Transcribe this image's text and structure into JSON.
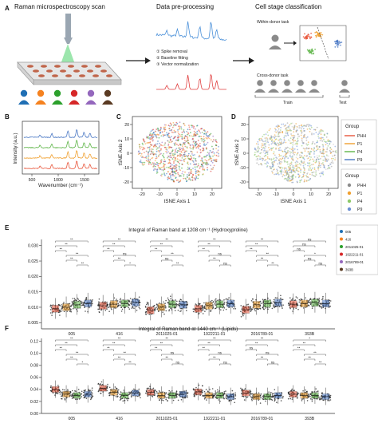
{
  "panel_a": {
    "letter": "A",
    "scan_title": "Raman microspectroscopy scan",
    "prep_title": "Data pre-processing",
    "steps": [
      "① Spike removal",
      "② Baseline fitting",
      "③ Vector normalization"
    ],
    "class_title": "Cell stage classification",
    "within_donor": "Within-donor task",
    "cross_donor": "Cross-donor task",
    "train_label": "Train",
    "test_label": "Test"
  },
  "panel_b": {
    "letter": "B",
    "ylabel": "Intensity (a.u.)",
    "xlabel": "Wavenumber (cm⁻¹)",
    "xticks": [
      "500",
      "1000",
      "1500"
    ]
  },
  "panel_c": {
    "letter": "C",
    "xlabel": "tSNE Axis 1",
    "ylabel": "tSNE Axis 2",
    "xticks": [
      "-20",
      "-10",
      "0",
      "10",
      "20"
    ],
    "yticks": [
      "20",
      "10",
      "0",
      "-10",
      "-20"
    ]
  },
  "panel_d": {
    "letter": "D",
    "xlabel": "tSNE Axis 1",
    "ylabel": "tSNE Axis 2",
    "xticks": [
      "-20",
      "-10",
      "0",
      "10",
      "20"
    ],
    "yticks": [
      "20",
      "10",
      "0",
      "-10",
      "-20"
    ]
  },
  "legend_group_lines": {
    "title": "Group",
    "items": [
      {
        "label": "PHH",
        "color": "#e8553a"
      },
      {
        "label": "P1",
        "color": "#f0a030"
      },
      {
        "label": "P4",
        "color": "#5fb548"
      },
      {
        "label": "P9",
        "color": "#4a78c4"
      }
    ]
  },
  "legend_group_dots": {
    "title": "Group",
    "items": [
      {
        "label": "PHH",
        "color": "#8c8c8c"
      },
      {
        "label": "P1",
        "color": "#f0a030"
      },
      {
        "label": "P4",
        "color": "#8dc96a"
      },
      {
        "label": "P9",
        "color": "#6b8fd4"
      }
    ]
  },
  "legend_donors": {
    "items": [
      {
        "label": "005",
        "color": "#1f6fb4"
      },
      {
        "label": "416",
        "color": "#f58220"
      },
      {
        "label": "2011025-01",
        "color": "#2ca02c"
      },
      {
        "label": "1922211-01",
        "color": "#d62728"
      },
      {
        "label": "2016789-01",
        "color": "#9467bd"
      },
      {
        "label": "393B",
        "color": "#5a3a22"
      }
    ]
  },
  "chart_data": [
    {
      "type": "box",
      "panel": "E",
      "title": "Integral of Raman band at 1208 cm⁻¹ (Hydroxyproline)",
      "categories": [
        "005",
        "416",
        "2011025-01",
        "1922211-01",
        "2016789-01",
        "393B"
      ],
      "yticks": [
        "0.005",
        "0.010",
        "0.015",
        "0.020",
        "0.025",
        "0.030"
      ],
      "ylim": [
        0.003,
        0.032
      ],
      "series_order": [
        "PHH",
        "P1",
        "P4",
        "P9"
      ],
      "medians": [
        [
          0.0095,
          0.01,
          0.0108,
          0.0112
        ],
        [
          0.0105,
          0.011,
          0.0112,
          0.0115
        ],
        [
          0.009,
          0.01,
          0.011,
          0.0108
        ],
        [
          0.0095,
          0.0105,
          0.011,
          0.0112
        ],
        [
          0.0092,
          0.0108,
          0.0112,
          0.0115
        ],
        [
          0.011,
          0.0112,
          0.0115,
          0.0112
        ]
      ],
      "sig": [
        [
          "**",
          "**",
          "**",
          "**",
          "**",
          "**",
          "**"
        ],
        [
          "**",
          "**",
          "**",
          "ns",
          "**",
          "*",
          "*"
        ],
        [
          "**",
          "**",
          "**",
          "**",
          "ns",
          "**",
          "ns"
        ],
        [
          "**",
          "**",
          "**",
          "ns",
          "**",
          "ns",
          "**"
        ],
        [
          "**",
          "**",
          "**",
          "**",
          "**",
          "**",
          "**"
        ],
        [
          "ns",
          "ns",
          "ns",
          "*",
          "ns",
          "ns",
          "ns"
        ]
      ]
    },
    {
      "type": "box",
      "panel": "F",
      "title": "Integral of Raman band at 1440 cm⁻¹ (Lipids)",
      "categories": [
        "005",
        "416",
        "2011025-01",
        "1922211-01",
        "2016789-01",
        "393B"
      ],
      "yticks": [
        "0.00",
        "0.02",
        "0.04",
        "0.06",
        "0.08",
        "0.10",
        "0.12"
      ],
      "ylim": [
        0.0,
        0.125
      ],
      "series_order": [
        "PHH",
        "P1",
        "P4",
        "P9"
      ],
      "medians": [
        [
          0.04,
          0.032,
          0.03,
          0.032
        ],
        [
          0.042,
          0.035,
          0.03,
          0.034
        ],
        [
          0.035,
          0.03,
          0.03,
          0.032
        ],
        [
          0.036,
          0.03,
          0.03,
          0.028
        ],
        [
          0.034,
          0.028,
          0.028,
          0.03
        ],
        [
          0.032,
          0.03,
          0.03,
          0.028
        ]
      ],
      "sig": [
        [
          "**",
          "**",
          "**",
          "**",
          "**",
          "*",
          "*"
        ],
        [
          "**",
          "**",
          "**",
          "**",
          "**",
          "**",
          "ns"
        ],
        [
          "**",
          "**",
          "**",
          "ns",
          "**",
          "ns",
          "ns"
        ],
        [
          "**",
          "**",
          "**",
          "ns",
          "**",
          "ns",
          "ns"
        ],
        [
          "**",
          "**",
          "ns",
          "ns",
          "**",
          "ns",
          "ns"
        ],
        [
          "*",
          "**",
          "**",
          "**",
          "**",
          "**",
          "**"
        ]
      ]
    }
  ]
}
